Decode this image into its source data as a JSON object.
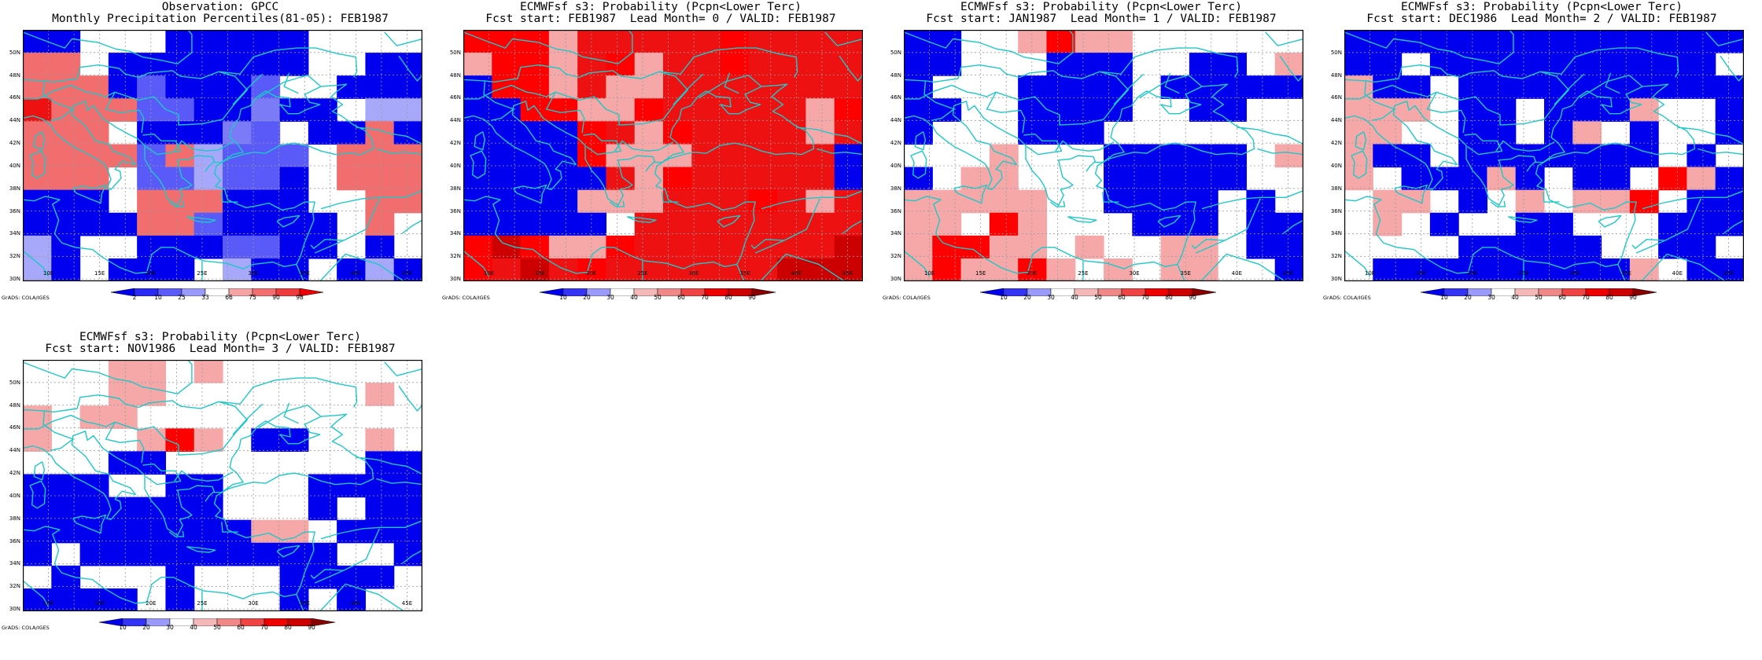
{
  "figure": {
    "panels": [
      {
        "title_line1": "Observation: GPCC",
        "title_line2": "Monthly Precipitation Percentiles(81-05): FEB1987",
        "colorbar_labels": [
          "2",
          "10",
          "25",
          "33",
          "66",
          "75",
          "90",
          "98"
        ],
        "colorbar_colors": [
          "#0000ee",
          "#2a2af5",
          "#5c5cfb",
          "#9a9afb",
          "#ffffff",
          "#f5a3a3",
          "#f36f6f",
          "#ee3c3c",
          "#ee0000"
        ],
        "cells": [
          "aa000aaaaa0000",
          "gg0aaaaaaa00aa",
          "gggabaaab00aaa",
          "xgggbbaadaa0cc",
          "ggg0aaadb0aaga",
          "ggggbgcbbb0ggg",
          "ggg0bbcbba0ggg",
          "aaa0gggaaa00gg",
          "aaaaggbaaaa0g0",
          "ca00aaabbaa0a0",
          "ca0aaa0caa0aca"
        ]
      },
      {
        "title_line1": "ECMWFsf s3: Probability (Pcpn<Lower Terc)",
        "title_line2": "Fcst start: FEB1987  Lead Month= 0 / VALID: FEB1987",
        "colorbar_labels": [
          "10",
          "20",
          "30",
          "40",
          "50",
          "60",
          "70",
          "80",
          "90"
        ],
        "colorbar_colors": [
          "#0000ee",
          "#3434f5",
          "#9a9afb",
          "#ffffff",
          "#f5b8b8",
          "#f08888",
          "#ee4444",
          "#ee0000",
          "#cc0000",
          "#8a0000"
        ],
        "cells": [
          "rrrfxxxxxrxxxx",
          "frrfxrfxxrxxxx",
          "arrfxffxxxxxxx",
          "aarrffrxxxxxfr",
          "aaaarxfrxxxxfx",
          "aaaarfffxxxxxa",
          "aaaaaxfrxxxxxa",
          "aaaafffxxxrxfx",
          "aaaaa0xxxxxxxx",
          "rhrffrxxxxxxxh",
          "rxhxrxxxxxxhhh"
        ]
      },
      {
        "title_line1": "ECMWFsf s3: Probability (Pcpn<Lower Terc)",
        "title_line2": "Fcst start: JAN1987  Lead Month= 1 / VALID: FEB1987",
        "colorbar_labels": [
          "10",
          "20",
          "30",
          "40",
          "50",
          "60",
          "70",
          "80",
          "90"
        ],
        "colorbar_colors": [
          "#0000ee",
          "#3434f5",
          "#9a9afb",
          "#ffffff",
          "#f5b8b8",
          "#f08888",
          "#ee4444",
          "#ee0000",
          "#cc0000",
          "#8a0000"
        ],
        "cells": [
          "aa00frff000000",
          "aa000aaa00aa0f",
          "a000aaaa0aaaaa",
          "aa00aaaa00aa00",
          "a000aaa0000000",
          "000f000aaaaa0f",
          "a0ff000aaaaa00",
          "fffff00aaaa0a0",
          "ff0rf000aaa0aa",
          "frrff0f00ff0aa",
          "frffrf0f0ff00a"
        ]
      },
      {
        "title_line1": "ECMWFsf s3: Probability (Pcpn<Lower Terc)",
        "title_line2": "Fcst start: DEC1986  Lead Month= 2 / VALID: FEB1987",
        "colorbar_labels": [
          "10",
          "20",
          "30",
          "40",
          "50",
          "60",
          "70",
          "80",
          "90"
        ],
        "colorbar_colors": [
          "#0000ee",
          "#3434f5",
          "#9a9afb",
          "#ffffff",
          "#f5b8b8",
          "#f08888",
          "#ee4444",
          "#ee0000",
          "#cc0000",
          "#8a0000"
        ],
        "cells": [
          "aaaaaaaaaaaaaa",
          "aa0aaaaaaaaaa0",
          "faa0aaaaaaaaaa",
          "fff0aa0aaaf00a",
          "ff00aa0af0a00a",
          "faa0aaaaaaa0a0",
          "f0aaafa0aa0rfa",
          "0ff0a0f0ffr0aa",
          "0f0a00aa000aaa",
          "0000aaaaa00aa0",
          "0aaaaaaaaaf0aa"
        ]
      },
      {
        "title_line1": "ECMWFsf s3: Probability (Pcpn<Lower Terc)",
        "title_line2": "Fcst start: NOV1986  Lead Month= 3 / VALID: FEB1987",
        "colorbar_labels": [
          "10",
          "20",
          "30",
          "40",
          "50",
          "60",
          "70",
          "80",
          "90"
        ],
        "colorbar_colors": [
          "#0000ee",
          "#3434f5",
          "#9a9afb",
          "#ffffff",
          "#f5b8b8",
          "#f08888",
          "#ee4444",
          "#ee0000",
          "#cc0000",
          "#8a0000"
        ],
        "cells": [
          "000ff0f0000000",
          "000ff0000000f0",
          "f0ff0000000000",
          "f000frf0aa00f0",
          "000aa0000000aa",
          "aaa00aa000aaaa",
          "aaaaaaa000a0aa",
          "aaaaaaaaff0aaa",
          "a0aaaaaaaaa00a",
          "0a000a000aaaa0",
          "aaaa0a000a0a00"
        ]
      }
    ],
    "lat_labels": [
      "50N",
      "48N",
      "46N",
      "44N",
      "42N",
      "40N",
      "38N",
      "36N",
      "34N",
      "32N",
      "30N"
    ],
    "lon_labels": [
      "10E",
      "15E",
      "20E",
      "25E",
      "30E",
      "35E",
      "40E",
      "45E"
    ],
    "credit": "GrADS: COLA/IGES"
  }
}
